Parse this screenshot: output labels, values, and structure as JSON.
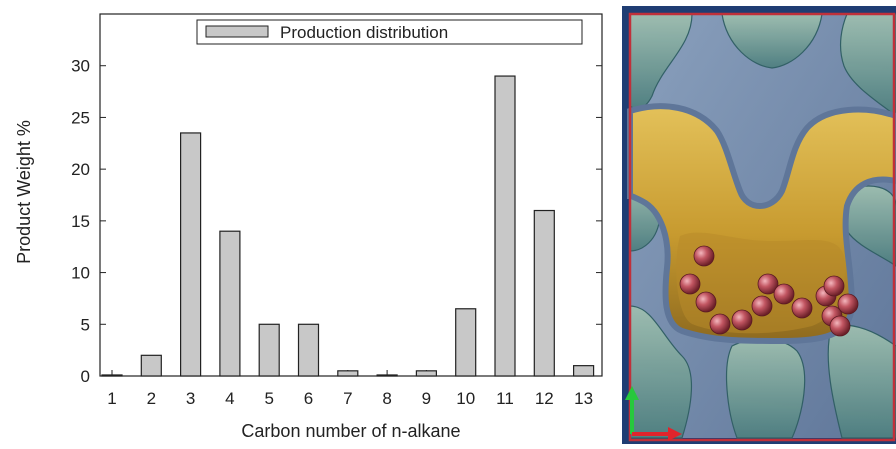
{
  "chart_data": {
    "type": "bar",
    "categories": [
      "1",
      "2",
      "3",
      "4",
      "5",
      "6",
      "7",
      "8",
      "9",
      "10",
      "11",
      "12",
      "13"
    ],
    "series": [
      {
        "name": "Production distribution",
        "values": [
          0.1,
          2,
          23.5,
          14,
          5,
          5,
          0.5,
          0.1,
          0.5,
          6.5,
          29,
          16,
          1
        ]
      }
    ],
    "title": "",
    "xlabel": "Carbon number of n-alkane",
    "ylabel": "Product Weight %",
    "ylim": [
      0,
      35
    ],
    "yticks": [
      "0",
      "5",
      "10",
      "15",
      "20",
      "25",
      "30"
    ],
    "grid": false,
    "legend": "top",
    "colors": {
      "bar_fill": "#c8c8c8",
      "bar_stroke": "#222222"
    }
  },
  "image_panel": {
    "description_icon": "zeolite-channel-rendering",
    "colors": {
      "background": "#1f3d73",
      "frame": "#c0303a",
      "surface_gold": "#c9a23a",
      "surface_blue": "#6f86a8",
      "atom": "#b84a55",
      "axis_y": "#27c83c",
      "axis_x": "#e0242c"
    }
  }
}
